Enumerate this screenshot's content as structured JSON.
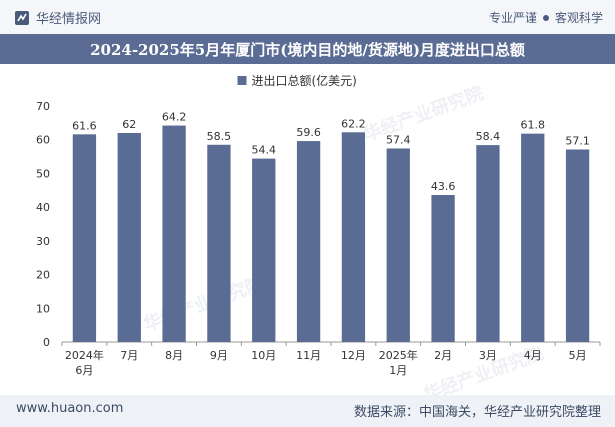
{
  "header": {
    "brand": "华经情报网",
    "tagline_left": "专业严谨",
    "tagline_right": "客观科学"
  },
  "title": "2024-2025年5月年厦门市(境内目的地/货源地)月度进出口总额",
  "footer": {
    "website": "www.huaon.com",
    "source": "数据来源：中国海关，华经产业研究院整理"
  },
  "watermarks": [
    "华经产业研究院",
    "华经产业研究院",
    "华经产业研究院"
  ],
  "colors": {
    "bar": "#5b6c94",
    "accent": "#5b6c94"
  },
  "chart_data": {
    "type": "bar",
    "categories": [
      "2024年\n6月",
      "7月",
      "8月",
      "9月",
      "10月",
      "11月",
      "12月",
      "2025年\n1月",
      "2月",
      "3月",
      "4月",
      "5月"
    ],
    "series": [
      {
        "name": "进出口总额(亿美元)",
        "values": [
          61.6,
          62,
          64.2,
          58.5,
          54.4,
          59.6,
          62.2,
          57.4,
          43.6,
          58.4,
          61.8,
          57.1
        ]
      }
    ],
    "value_labels": [
      "61.6",
      "62",
      "64.2",
      "58.5",
      "54.4",
      "59.6",
      "62.2",
      "57.4",
      "43.6",
      "58.4",
      "61.8",
      "57.1"
    ],
    "yticks": [
      "0",
      "10",
      "20",
      "30",
      "40",
      "50",
      "60",
      "70"
    ],
    "ylim": [
      0,
      70
    ],
    "legend_position": "top-center",
    "grid": false
  }
}
